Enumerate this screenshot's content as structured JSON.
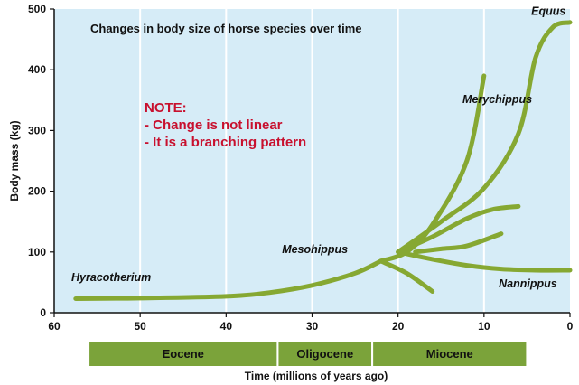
{
  "chart_data": {
    "type": "line",
    "title": "Changes in body size of horse species over time",
    "xlabel": "Time (millions of years ago)",
    "ylabel": "Body mass (kg)",
    "xlim": [
      60,
      0
    ],
    "ylim": [
      0,
      500
    ],
    "x_ticks": [
      "60",
      "50",
      "40",
      "30",
      "20",
      "10",
      "0"
    ],
    "y_ticks": [
      "0",
      "100",
      "200",
      "300",
      "400",
      "500"
    ],
    "grid": "vertical",
    "plot_background": "#d6ecf7",
    "line_color": "#86a832",
    "epoch_color": "#7ba33a",
    "note_color": "#c8102e",
    "note": {
      "heading": "NOTE:",
      "lines": [
        "- Change is not linear",
        "- It is a branching pattern"
      ]
    },
    "epochs": [
      {
        "label": "Eocene",
        "start": 56,
        "end": 34
      },
      {
        "label": "Oligocene",
        "start": 34,
        "end": 23
      },
      {
        "label": "Miocene",
        "start": 23,
        "end": 5
      }
    ],
    "labels": [
      {
        "text": "Hyracotherium",
        "x": 58,
        "y": 52
      },
      {
        "text": "Mesohippus",
        "x": 33.5,
        "y": 98
      },
      {
        "text": "Merychippus",
        "x": 12.5,
        "y": 345
      },
      {
        "text": "Equus",
        "x": 4.5,
        "y": 490
      },
      {
        "text": "Nannippus",
        "x": 1.5,
        "y": 42
      }
    ],
    "series": [
      {
        "points": [
          [
            57.5,
            23
          ],
          [
            50,
            24
          ],
          [
            40,
            27
          ],
          [
            35,
            33
          ],
          [
            30,
            45
          ],
          [
            25,
            65
          ],
          [
            22,
            85
          ]
        ]
      },
      {
        "points": [
          [
            22,
            85
          ],
          [
            19,
            65
          ],
          [
            16,
            35
          ]
        ]
      },
      {
        "points": [
          [
            22,
            85
          ],
          [
            19,
            100
          ],
          [
            16,
            145
          ],
          [
            12,
            250
          ],
          [
            10,
            390
          ]
        ]
      },
      {
        "points": [
          [
            20,
            100
          ],
          [
            15,
            150
          ],
          [
            10,
            205
          ],
          [
            6,
            295
          ],
          [
            4,
            420
          ],
          [
            2,
            470
          ],
          [
            0,
            478
          ]
        ]
      },
      {
        "points": [
          [
            20,
            100
          ],
          [
            16,
            125
          ],
          [
            12,
            155
          ],
          [
            9,
            170
          ],
          [
            6,
            175
          ]
        ]
      },
      {
        "points": [
          [
            18,
            100
          ],
          [
            15,
            105
          ],
          [
            12,
            110
          ],
          [
            8,
            130
          ]
        ]
      },
      {
        "points": [
          [
            20,
            100
          ],
          [
            16,
            88
          ],
          [
            12,
            78
          ],
          [
            8,
            72
          ],
          [
            4,
            70
          ],
          [
            0,
            70
          ]
        ]
      }
    ]
  }
}
